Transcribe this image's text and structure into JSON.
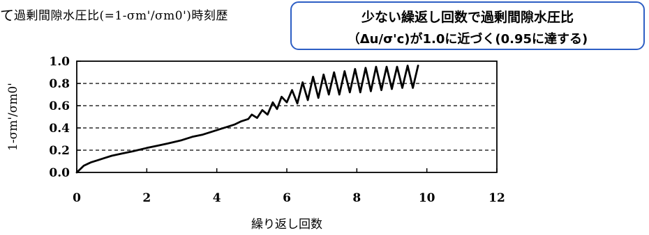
{
  "header": {
    "prefix_mark": "て",
    "title": "過剰間隙水圧比(=1-σm'/σm0')時刻歴"
  },
  "callout": {
    "line1": "少ない繰返し回数で過剰間隙水圧比",
    "line2": "（Δu/σ'c)が1.0に近づく(0.95に達する)",
    "border_color": "#2d5ec4"
  },
  "chart_data": {
    "type": "line",
    "title": "過剰間隙水圧比(=1-σm'/σm0')時刻歴",
    "xlabel": "繰り返し回数",
    "ylabel": "1-σm'/σm0'",
    "xlim": [
      0,
      12
    ],
    "ylim": [
      0,
      1.0
    ],
    "x_ticks": [
      0,
      2,
      4,
      6,
      8,
      10,
      12
    ],
    "y_ticks": [
      0.0,
      0.2,
      0.4,
      0.6,
      0.8,
      1.0
    ],
    "x_tick_labels": [
      "0",
      "2",
      "4",
      "6",
      "8",
      "10",
      "12"
    ],
    "y_tick_labels": [
      "0.0",
      "0.2",
      "0.4",
      "0.6",
      "0.8",
      "1.0"
    ],
    "grid": "horizontal dashed",
    "series": [
      {
        "color": "#000000",
        "x": [
          0,
          0.1,
          0.2,
          0.4,
          0.6,
          0.8,
          1.0,
          1.3,
          1.6,
          2.0,
          2.3,
          2.6,
          3.0,
          3.3,
          3.6,
          3.9,
          4.1,
          4.3,
          4.5,
          4.7,
          4.9,
          5.0,
          5.15,
          5.3,
          5.45,
          5.6,
          5.72,
          5.85,
          6.0,
          6.15,
          6.3,
          6.45,
          6.6,
          6.75,
          6.9,
          7.05,
          7.2,
          7.35,
          7.5,
          7.65,
          7.8,
          7.95,
          8.1,
          8.25,
          8.4,
          8.55,
          8.7,
          8.85,
          9.0,
          9.15,
          9.3,
          9.45,
          9.6,
          9.75
        ],
        "y": [
          0.0,
          0.03,
          0.06,
          0.09,
          0.11,
          0.13,
          0.15,
          0.17,
          0.19,
          0.22,
          0.24,
          0.26,
          0.29,
          0.32,
          0.34,
          0.37,
          0.39,
          0.41,
          0.43,
          0.46,
          0.48,
          0.52,
          0.49,
          0.56,
          0.52,
          0.63,
          0.57,
          0.68,
          0.63,
          0.74,
          0.62,
          0.81,
          0.65,
          0.86,
          0.67,
          0.88,
          0.7,
          0.9,
          0.7,
          0.91,
          0.72,
          0.93,
          0.72,
          0.94,
          0.73,
          0.95,
          0.74,
          0.95,
          0.75,
          0.95,
          0.76,
          0.96,
          0.76,
          0.96
        ]
      }
    ]
  }
}
